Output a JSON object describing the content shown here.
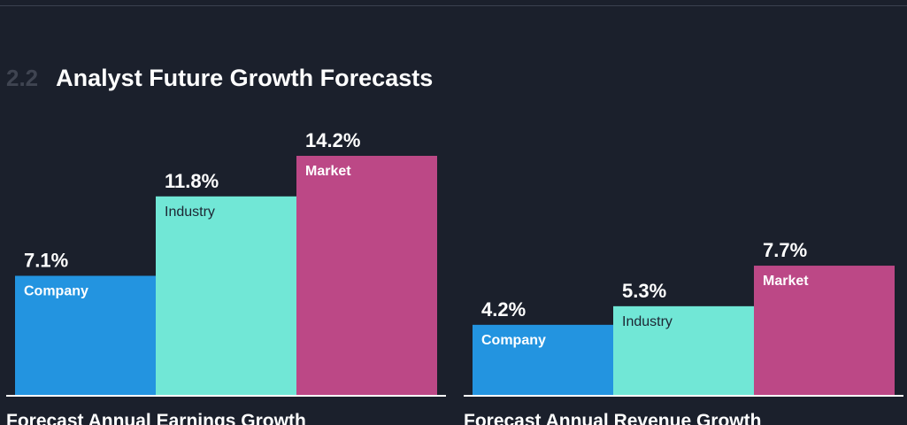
{
  "section": {
    "number": "2.2",
    "title": "Analyst Future Growth Forecasts"
  },
  "colors": {
    "company": "#2394e0",
    "industry": "#71e7d6",
    "market": "#bc4886",
    "background": "#1b202c",
    "baseline": "#ffffff"
  },
  "chart_data": [
    {
      "type": "bar",
      "title": "Forecast Annual Earnings Growth",
      "categories": [
        "Company",
        "Industry",
        "Market"
      ],
      "values": [
        7.1,
        11.8,
        14.2
      ],
      "value_labels": [
        "7.1%",
        "11.8%",
        "14.2%"
      ],
      "ylim": [
        0,
        14.2
      ],
      "grid": false,
      "legend": "none"
    },
    {
      "type": "bar",
      "title": "Forecast Annual Revenue Growth",
      "categories": [
        "Company",
        "Industry",
        "Market"
      ],
      "values": [
        4.2,
        5.3,
        7.7
      ],
      "value_labels": [
        "4.2%",
        "5.3%",
        "7.7%"
      ],
      "ylim": [
        0,
        14.2
      ],
      "grid": false,
      "legend": "none"
    }
  ]
}
